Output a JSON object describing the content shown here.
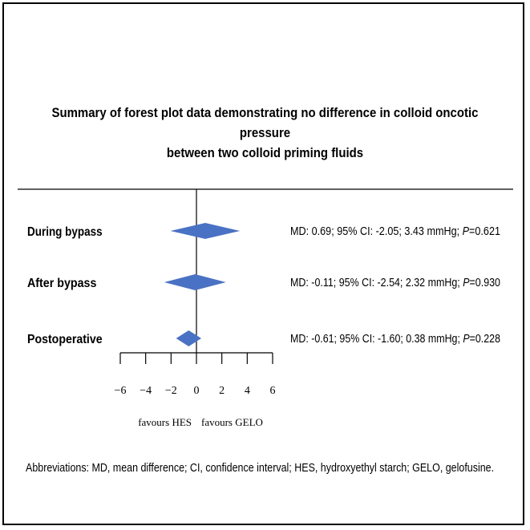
{
  "title_lines": [
    "Summary of forest plot data demonstrating no difference in colloid oncotic pressure",
    "between two colloid priming fluids"
  ],
  "footnote": "Abbreviations: MD, mean difference; CI, confidence interval; HES, hydroxyethyl starch; GELO, gelofusine.",
  "colors": {
    "diamond": "#4a72c4",
    "axis": "#000000"
  },
  "chart_data": {
    "type": "forest",
    "xlim": [
      -6,
      6
    ],
    "ticks": [
      -6,
      -4,
      -2,
      0,
      2,
      4,
      6
    ],
    "favours_left": "favours HES",
    "favours_right": "favours GELO",
    "rows": [
      {
        "label": "During bypass",
        "md": 0.69,
        "lo": -2.05,
        "hi": 3.43,
        "unit": "mmHg",
        "p": "0.621",
        "stat_prefix": "MD: 0.69; 95% CI: -2.05; 3.43 mmHg; ",
        "p_text": "=0.621"
      },
      {
        "label": "After bypass",
        "md": -0.11,
        "lo": -2.54,
        "hi": 2.32,
        "unit": "mmHg",
        "p": "0.930",
        "stat_prefix": "MD: -0.11; 95% CI: -2.54; 2.32 mmHg; ",
        "p_text": "=0.930"
      },
      {
        "label": "Postoperative",
        "md": -0.61,
        "lo": -1.6,
        "hi": 0.38,
        "unit": "mmHg",
        "p": "0.228",
        "stat_prefix": "MD: -0.61; 95% CI: -1.60; 0.38 mmHg; ",
        "p_text": "=0.228"
      }
    ]
  }
}
